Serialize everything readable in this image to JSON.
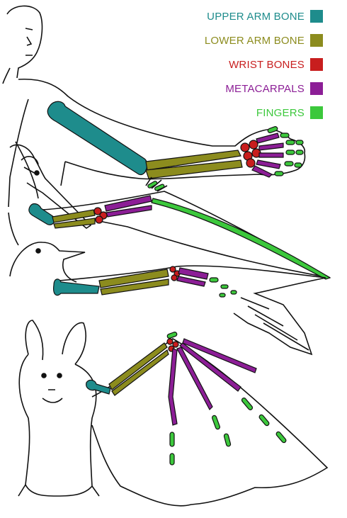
{
  "legend": [
    {
      "label": "UPPER ARM BONE",
      "color": "#1e8c8c"
    },
    {
      "label": "LOWER ARM BONE",
      "color": "#8c8c1e"
    },
    {
      "label": "WRIST BONES",
      "color": "#c81e1e"
    },
    {
      "label": "METACARPALS",
      "color": "#8c1e96"
    },
    {
      "label": "FINGERS",
      "color": "#3cc83c"
    }
  ],
  "subjects": [
    "human",
    "pterosaur",
    "bird",
    "bat"
  ],
  "outline_color": "#111111"
}
